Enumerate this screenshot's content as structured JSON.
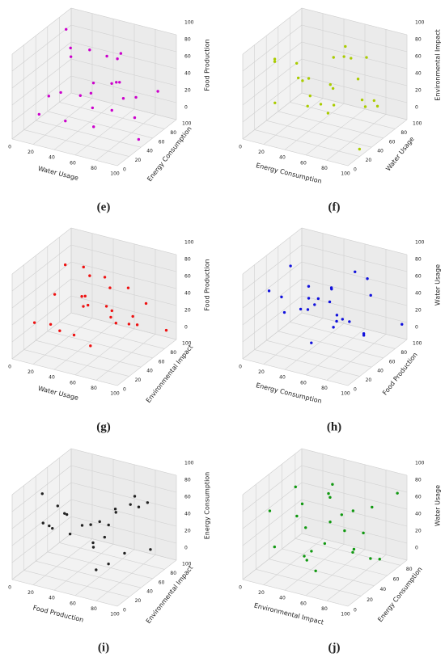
{
  "chart_data": [
    {
      "type": "scatter3d",
      "caption": "(e)",
      "xlabel": "Water Usage",
      "ylabel": "Energy Consumption",
      "zlabel": "Food Production",
      "color": "#cc00cc",
      "xlim": [
        0,
        100
      ],
      "ylim": [
        0,
        100
      ],
      "zlim": [
        0,
        100
      ],
      "xticks": [
        0,
        20,
        40,
        60,
        80,
        100
      ],
      "yticks": [
        0,
        20,
        40,
        60,
        80,
        100
      ],
      "zticks": [
        0,
        20,
        40,
        60,
        80,
        100
      ],
      "x": [
        5,
        12,
        18,
        25,
        30,
        35,
        40,
        45,
        50,
        55,
        60,
        62,
        68,
        70,
        75,
        80,
        85,
        88,
        92,
        95,
        20,
        48,
        72,
        38,
        58
      ],
      "y": [
        90,
        70,
        30,
        55,
        80,
        20,
        60,
        10,
        95,
        40,
        75,
        50,
        15,
        85,
        35,
        65,
        25,
        90,
        5,
        45,
        10,
        30,
        50,
        70,
        85
      ],
      "z": [
        60,
        95,
        40,
        75,
        20,
        55,
        85,
        30,
        65,
        10,
        45,
        90,
        50,
        25,
        70,
        15,
        80,
        35,
        60,
        5,
        30,
        50,
        90,
        40,
        20
      ]
    },
    {
      "type": "scatter3d",
      "caption": "(f)",
      "xlabel": "Energy Consumption",
      "ylabel": "Water Usage",
      "zlabel": "Environmental Impact",
      "color": "#aacc00",
      "xlim": [
        0,
        100
      ],
      "ylim": [
        0,
        100
      ],
      "zlim": [
        0,
        100
      ],
      "xticks": [
        0,
        20,
        40,
        60,
        80,
        100
      ],
      "yticks": [
        0,
        20,
        40,
        60,
        80,
        100
      ],
      "zticks": [
        0,
        20,
        40,
        60,
        80,
        100
      ],
      "x": [
        8,
        15,
        22,
        28,
        33,
        40,
        44,
        50,
        53,
        58,
        63,
        66,
        71,
        77,
        81,
        86,
        90,
        94,
        97,
        12,
        36,
        47,
        69,
        84,
        25
      ],
      "y": [
        40,
        85,
        15,
        60,
        95,
        30,
        70,
        5,
        50,
        80,
        20,
        90,
        45,
        65,
        10,
        75,
        35,
        55,
        25,
        70,
        50,
        90,
        30,
        60,
        10
      ],
      "z": [
        75,
        30,
        90,
        15,
        55,
        65,
        40,
        85,
        20,
        70,
        50,
        10,
        95,
        35,
        60,
        25,
        80,
        45,
        5,
        55,
        35,
        75,
        65,
        90,
        45
      ]
    },
    {
      "type": "scatter3d",
      "caption": "(g)",
      "xlabel": "Water Usage",
      "ylabel": "Environmental Impact",
      "zlabel": "Food Production",
      "color": "#ee1111",
      "xlim": [
        0,
        100
      ],
      "ylim": [
        0,
        100
      ],
      "zlim": [
        0,
        100
      ],
      "xticks": [
        0,
        20,
        40,
        60,
        80,
        100
      ],
      "yticks": [
        0,
        20,
        40,
        60,
        80,
        100
      ],
      "zticks": [
        0,
        20,
        40,
        60,
        80,
        100
      ],
      "x": [
        10,
        14,
        20,
        26,
        31,
        37,
        42,
        46,
        52,
        57,
        61,
        65,
        70,
        74,
        79,
        83,
        88,
        91,
        96,
        18,
        34,
        55,
        67,
        44,
        78
      ],
      "y": [
        20,
        65,
        45,
        85,
        10,
        55,
        30,
        75,
        40,
        95,
        15,
        60,
        35,
        80,
        25,
        50,
        70,
        5,
        90,
        40,
        60,
        20,
        85,
        50,
        30
      ],
      "z": [
        35,
        80,
        15,
        60,
        45,
        90,
        25,
        70,
        10,
        50,
        85,
        30,
        65,
        20,
        95,
        40,
        55,
        75,
        15,
        60,
        40,
        80,
        25,
        50,
        65
      ]
    },
    {
      "type": "scatter3d",
      "caption": "(h)",
      "xlabel": "Energy Consumption",
      "ylabel": "Food Production",
      "zlabel": "Water Usage",
      "color": "#1111dd",
      "xlim": [
        0,
        100
      ],
      "ylim": [
        0,
        100
      ],
      "zlim": [
        0,
        100
      ],
      "xticks": [
        0,
        20,
        40,
        60,
        80,
        100
      ],
      "yticks": [
        0,
        20,
        40,
        60,
        80,
        100
      ],
      "zticks": [
        0,
        20,
        40,
        60,
        80,
        100
      ],
      "x": [
        6,
        11,
        17,
        23,
        29,
        34,
        39,
        43,
        49,
        54,
        59,
        64,
        69,
        73,
        78,
        82,
        87,
        93,
        98,
        27,
        45,
        62,
        75,
        15,
        88
      ],
      "y": [
        55,
        25,
        80,
        40,
        70,
        10,
        90,
        35,
        60,
        20,
        85,
        45,
        5,
        75,
        30,
        65,
        50,
        15,
        95,
        50,
        70,
        40,
        20,
        85,
        60
      ],
      "z": [
        45,
        70,
        20,
        95,
        35,
        60,
        15,
        80,
        50,
        25,
        75,
        40,
        90,
        10,
        55,
        85,
        30,
        65,
        20,
        40,
        60,
        80,
        50,
        30,
        70
      ]
    },
    {
      "type": "scatter3d",
      "caption": "(i)",
      "xlabel": "Food Production",
      "ylabel": "Environmental Impact",
      "zlabel": "Energy Consumption",
      "color": "#222222",
      "xlim": [
        0,
        100
      ],
      "ylim": [
        0,
        100
      ],
      "zlim": [
        0,
        100
      ],
      "xticks": [
        0,
        20,
        40,
        60,
        80,
        100
      ],
      "yticks": [
        0,
        20,
        40,
        60,
        80,
        100
      ],
      "zticks": [
        0,
        20,
        40,
        60,
        80,
        100
      ],
      "x": [
        4,
        9,
        16,
        21,
        27,
        32,
        38,
        41,
        47,
        52,
        56,
        63,
        67,
        72,
        76,
        81,
        86,
        90,
        95,
        24,
        43,
        58,
        79,
        13,
        66
      ],
      "y": [
        70,
        35,
        90,
        15,
        50,
        80,
        25,
        60,
        5,
        45,
        75,
        30,
        95,
        20,
        55,
        85,
        10,
        40,
        65,
        20,
        80,
        60,
        35,
        45,
        90
      ],
      "z": [
        50,
        85,
        20,
        65,
        35,
        10,
        75,
        45,
        90,
        30,
        60,
        15,
        55,
        80,
        25,
        70,
        40,
        95,
        30,
        60,
        20,
        50,
        85,
        40,
        70
      ]
    },
    {
      "type": "scatter3d",
      "caption": "(j)",
      "xlabel": "Environmental Impact",
      "ylabel": "Energy Consumption",
      "zlabel": "Water Usage",
      "color": "#119911",
      "xlim": [
        0,
        100
      ],
      "ylim": [
        0,
        90
      ],
      "zlim": [
        0,
        100
      ],
      "xticks": [
        0,
        20,
        40,
        60,
        80,
        100
      ],
      "yticks": [
        0,
        20,
        40,
        60,
        80
      ],
      "zticks": [
        0,
        20,
        40,
        60,
        80,
        100
      ],
      "x": [
        7,
        13,
        19,
        24,
        30,
        36,
        41,
        46,
        51,
        55,
        60,
        66,
        71,
        75,
        80,
        84,
        89,
        94,
        99,
        16,
        39,
        53,
        73,
        87,
        31
      ],
      "y": [
        30,
        75,
        50,
        10,
        85,
        40,
        65,
        20,
        55,
        80,
        15,
        45,
        70,
        35,
        5,
        60,
        25,
        85,
        50,
        65,
        20,
        40,
        80,
        30,
        55
      ],
      "z": [
        65,
        20,
        85,
        40,
        55,
        10,
        75,
        30,
        95,
        50,
        20,
        70,
        35,
        60,
        90,
        15,
        45,
        80,
        25,
        55,
        75,
        35,
        60,
        45,
        10
      ]
    }
  ]
}
